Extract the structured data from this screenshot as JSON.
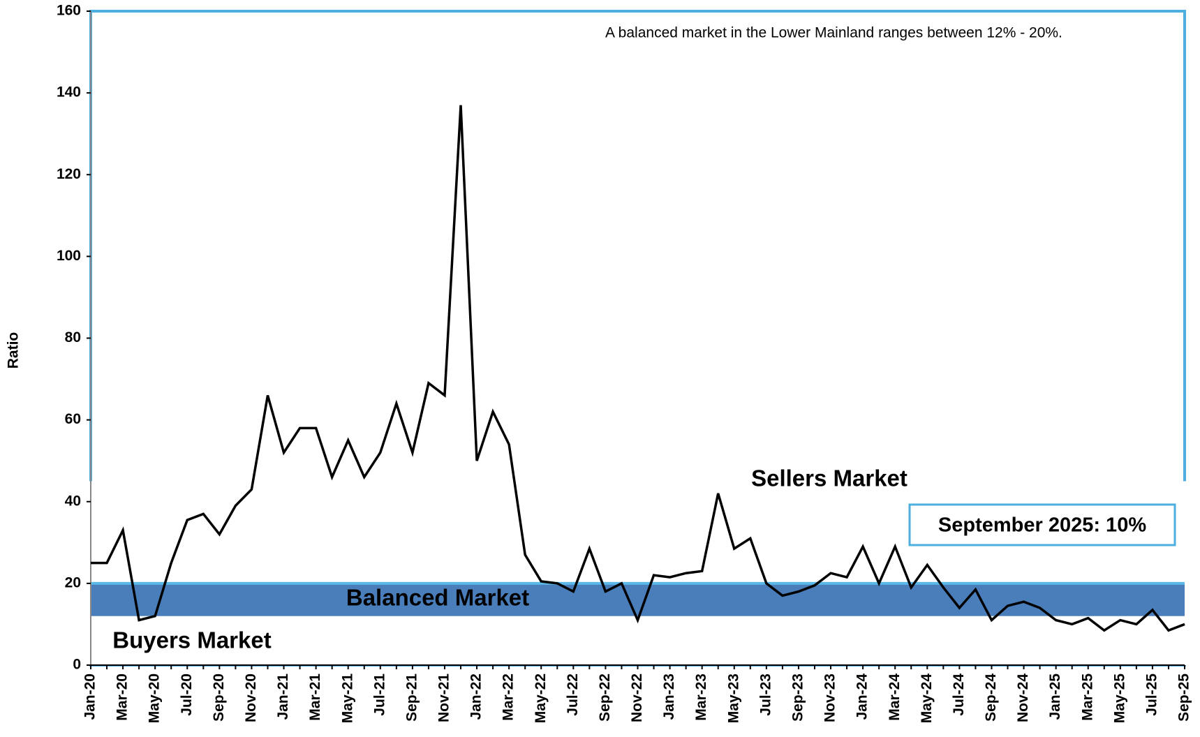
{
  "chart_data": {
    "type": "line",
    "y_label": "Ratio",
    "annotation": "A balanced market in the Lower Mainland ranges between 12% - 20%.",
    "zone_labels": {
      "sellers": "Sellers Market",
      "balanced": "Balanced Market",
      "buyers": "Buyers Market"
    },
    "callout": "September 2025: 10%",
    "balanced_range": [
      12,
      20
    ],
    "categories": [
      "Jan-20",
      null,
      "Mar-20",
      null,
      "May-20",
      null,
      "Jul-20",
      null,
      "Sep-20",
      null,
      "Nov-20",
      null,
      "Jan-21",
      null,
      "Mar-21",
      null,
      "May-21",
      null,
      "Jul-21",
      null,
      "Sep-21",
      null,
      "Nov-21",
      null,
      "Jan-22",
      null,
      "Mar-22",
      null,
      "May-22",
      null,
      "Jul-22",
      null,
      "Sep-22",
      null,
      "Nov-22",
      null,
      "Jan-23",
      null,
      "Mar-23",
      null,
      "May-23",
      null,
      "Jul-23",
      null,
      "Sep-23",
      null,
      "Nov-23",
      null,
      "Jan-24",
      null,
      "Mar-24",
      null,
      "May-24",
      null,
      "Jul-24",
      null,
      "Sep-24",
      null,
      "Nov-24",
      null,
      "Jan-25",
      null,
      "Mar-25",
      null,
      "May-25",
      null,
      "Jul-25",
      null,
      "Sep-25"
    ],
    "series": [
      {
        "name": "Ratio",
        "color": "#000000",
        "values": [
          25,
          25,
          33,
          11,
          12,
          25,
          35.5,
          37,
          32,
          39,
          43,
          66,
          52,
          58,
          58,
          46,
          55,
          46,
          52,
          64,
          52,
          69,
          66,
          137,
          50,
          62,
          54,
          27,
          20.5,
          20,
          18,
          28.5,
          18,
          20,
          11,
          22,
          21.5,
          22.5,
          23,
          42,
          28.5,
          31,
          20,
          17,
          18,
          19.5,
          22.5,
          21.5,
          29,
          20,
          29,
          19,
          24.5,
          19,
          14,
          18.5,
          11,
          14.5,
          15.5,
          14,
          11,
          10,
          11.5,
          8.5,
          11,
          10,
          13.5,
          8.5,
          10
        ]
      }
    ],
    "ylim": [
      0,
      160
    ],
    "yticks": [
      0,
      20,
      40,
      60,
      80,
      100,
      120,
      140,
      160
    ],
    "band_color": "#4a7ebb",
    "frame_color": "#4eaee0"
  }
}
